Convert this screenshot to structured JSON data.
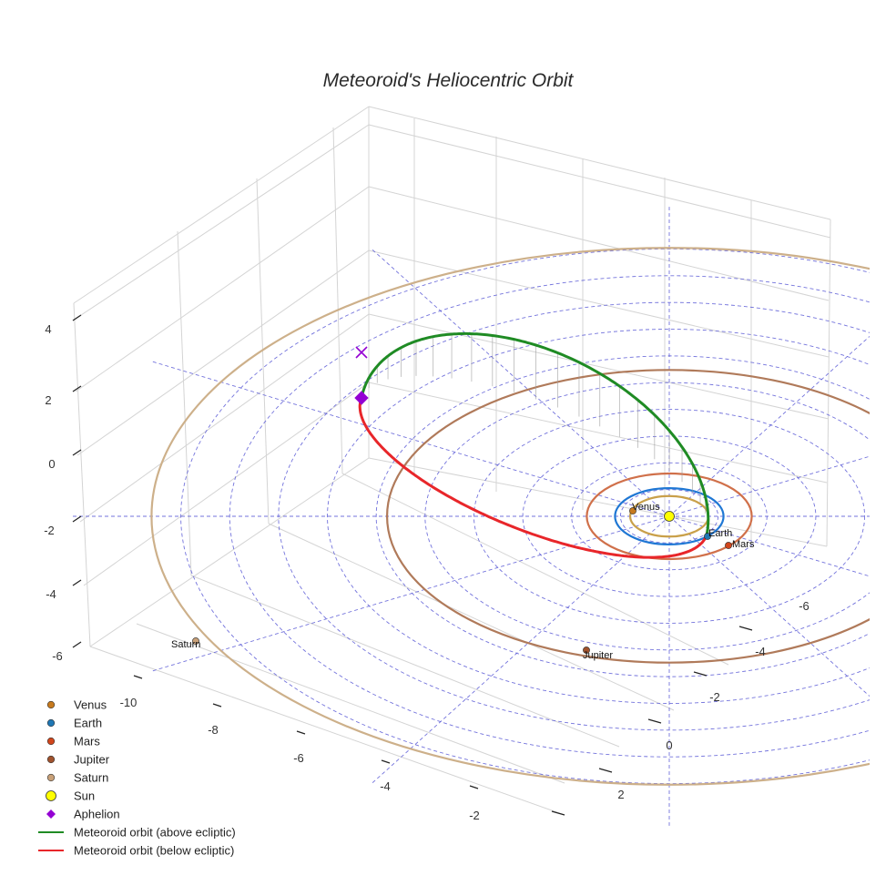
{
  "chart_data": {
    "type": "3d-orbit",
    "title": "Meteoroid's Heliocentric Orbit",
    "axes": {
      "x": {
        "ticks": [
          -10,
          -8,
          -6,
          -4,
          -2
        ]
      },
      "y": {
        "ticks": [
          -6,
          -4,
          -2,
          0,
          2
        ]
      },
      "z": {
        "ticks": [
          4,
          2,
          0,
          -2,
          -4,
          -6
        ]
      }
    },
    "planets": [
      {
        "name": "Venus",
        "label": "Venus",
        "orbit_radius_au": 0.72,
        "color": "#c77a1e",
        "orbit_color": "#c9a04a"
      },
      {
        "name": "Earth",
        "label": "Earth",
        "orbit_radius_au": 1.0,
        "color": "#1f77b4",
        "orbit_color": "#1f77d4"
      },
      {
        "name": "Mars",
        "label": "Mars",
        "orbit_radius_au": 1.52,
        "color": "#d1461c",
        "orbit_color": "#d0704a"
      },
      {
        "name": "Jupiter",
        "label": "Jupiter",
        "orbit_radius_au": 5.2,
        "color": "#a0522d",
        "orbit_color": "#b07a5a"
      },
      {
        "name": "Saturn",
        "label": "Saturn",
        "orbit_radius_au": 9.54,
        "color": "#c8a078",
        "orbit_color": "#cdb08a"
      }
    ],
    "sun": {
      "label": "Sun",
      "color": "#ffff00"
    },
    "aphelion": {
      "label": "Aphelion",
      "color": "#9400d3"
    },
    "meteoroid": {
      "above_label": "Meteoroid orbit (above ecliptic)",
      "below_label": "Meteoroid orbit (below ecliptic)",
      "above_color": "#1f8b24",
      "below_color": "#e8262a"
    },
    "legend": {
      "placement": "bottom-left",
      "entries": [
        {
          "label": "Venus",
          "marker": "circle",
          "color": "#c77a1e"
        },
        {
          "label": "Earth",
          "marker": "circle",
          "color": "#1f77b4"
        },
        {
          "label": "Mars",
          "marker": "circle",
          "color": "#d1461c"
        },
        {
          "label": "Jupiter",
          "marker": "circle",
          "color": "#a0522d"
        },
        {
          "label": "Saturn",
          "marker": "circle",
          "color": "#c8a078"
        },
        {
          "label": "Sun",
          "marker": "circle-large",
          "color": "#ffff00"
        },
        {
          "label": "Aphelion",
          "marker": "diamond",
          "color": "#9400d3"
        },
        {
          "label": "Meteoroid orbit (above ecliptic)",
          "marker": "line",
          "color": "#1f8b24"
        },
        {
          "label": "Meteoroid orbit (below ecliptic)",
          "marker": "line",
          "color": "#e8262a"
        }
      ]
    }
  }
}
